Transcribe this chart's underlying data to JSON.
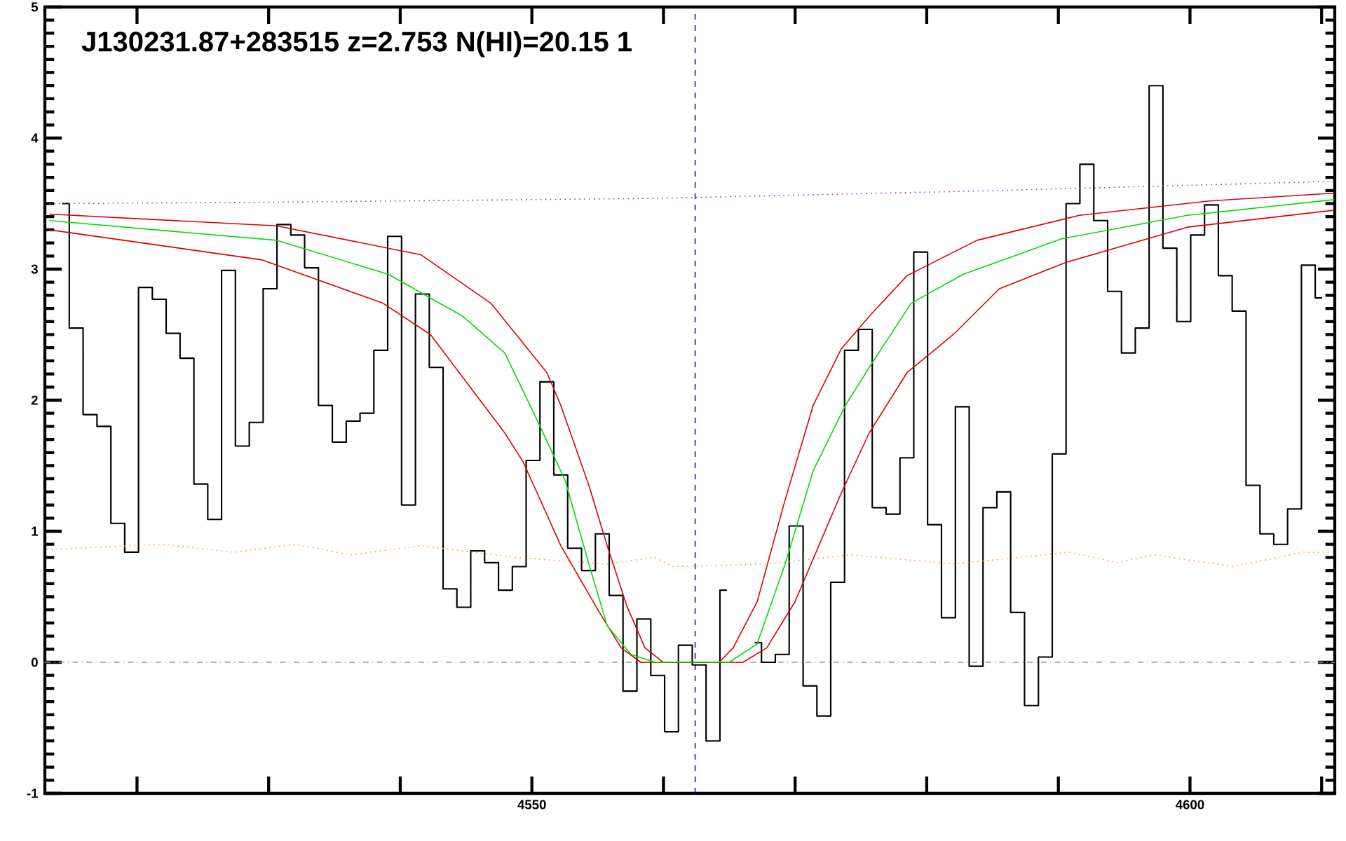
{
  "chart_data": {
    "type": "step",
    "title": "J130231.87+283515 z=2.753 N(HI)=20.15 1",
    "xlim": [
      4513,
      4611
    ],
    "ylim": [
      -1,
      5
    ],
    "xticks": [
      {
        "value": 4520,
        "label": null
      },
      {
        "value": 4530,
        "label": null
      },
      {
        "value": 4540,
        "label": null
      },
      4550,
      {
        "value": 4560,
        "label": null
      },
      {
        "value": 4570,
        "label": null
      },
      {
        "value": 4580,
        "label": null
      },
      {
        "value": 4590,
        "label": null
      },
      4600,
      {
        "value": 4610,
        "label": null
      }
    ],
    "yticks": [
      -1,
      0,
      1,
      2,
      3,
      4,
      5
    ],
    "series": [
      {
        "color": "#000000",
        "x": [
          4514.33,
          4515.38,
          4516.43,
          4517.49,
          4518.54,
          4519.59,
          4520.64,
          4521.69,
          4522.74,
          4523.8,
          4524.85,
          4525.9,
          4526.95,
          4528.0,
          4529.06,
          4530.11,
          4531.16,
          4532.21,
          4533.26,
          4534.31,
          4535.37,
          4536.42,
          4537.47,
          4538.52,
          4539.57,
          4540.63,
          4541.68,
          4542.73,
          4543.78,
          4544.83,
          4545.88,
          4546.94,
          4547.99,
          4549.04,
          4550.09,
          4551.14,
          4552.19,
          4553.25,
          4554.3,
          4555.35,
          4556.4,
          4557.45,
          4558.51,
          4559.56,
          4560.61,
          4561.66,
          4562.71,
          4563.76,
          4564.82,
          4565.87,
          4566.92,
          4567.97,
          4569.02,
          4570.08,
          4571.13,
          4572.18,
          4573.23,
          4574.28,
          4575.33,
          4576.39,
          4577.44,
          4578.49,
          4579.54,
          4580.59,
          4581.65,
          4582.7,
          4583.75,
          4584.8,
          4585.85,
          4586.9,
          4587.96,
          4589.01,
          4590.06,
          4591.11,
          4592.16,
          4593.22,
          4594.27,
          4595.32,
          4596.37,
          4597.42,
          4598.47,
          4599.53,
          4600.58,
          4601.63,
          4602.68,
          4603.73,
          4604.79,
          4605.84,
          4606.89,
          4607.94,
          4608.99,
          4610.04
        ],
        "values": [
          3.5,
          2.55,
          1.89,
          1.8,
          1.06,
          0.84,
          2.86,
          2.77,
          2.51,
          2.32,
          1.36,
          1.09,
          2.99,
          1.65,
          1.83,
          2.85,
          3.34,
          3.26,
          3.01,
          1.96,
          1.68,
          1.84,
          1.9,
          2.38,
          3.25,
          1.2,
          2.81,
          2.25,
          0.56,
          0.42,
          0.85,
          0.76,
          0.55,
          0.73,
          1.54,
          2.14,
          1.43,
          0.87,
          0.7,
          0.98,
          0.51,
          -0.22,
          0.33,
          -0.1,
          -0.53,
          0.13,
          -0.02,
          -0.6,
          0.55,
          null,
          0.15,
          0.0,
          0.06,
          1.04,
          -0.18,
          -0.41,
          0.61,
          2.38,
          2.54,
          1.18,
          1.13,
          1.56,
          3.13,
          1.05,
          0.34,
          1.95,
          -0.03,
          1.18,
          1.3,
          0.38,
          -0.33,
          0.04,
          1.59,
          3.5,
          3.8,
          3.37,
          2.83,
          2.36,
          2.55,
          4.4,
          3.16,
          2.6,
          3.26,
          3.49,
          2.95,
          2.68,
          1.35,
          0.98,
          0.9,
          1.17,
          3.03,
          2.78
        ]
      },
      {
        "type": "line",
        "color": "#9933cc",
        "line_style": "dotted",
        "x": [
          4513.35,
          4530.0,
          4559.34,
          4585.5,
          4610.97
        ],
        "values": [
          3.5,
          3.51,
          3.54,
          3.6,
          3.67
        ]
      },
      {
        "type": "line",
        "color": "#ff9933",
        "line_style": "dotted",
        "x": [
          4513.14,
          4522.08,
          4527.4,
          4531.98,
          4536.24,
          4541.56,
          4548.69,
          4555.72,
          4559.34,
          4560.72,
          4567.85,
          4574.24,
          4582.01,
          4590.85,
          4594.47,
          4597.24,
          4603.3,
          4608.63,
          4610.76
        ],
        "values": [
          0.86,
          0.9,
          0.84,
          0.9,
          0.82,
          0.89,
          0.8,
          0.75,
          0.8,
          0.73,
          0.75,
          0.82,
          0.75,
          0.84,
          0.76,
          0.82,
          0.73,
          0.84,
          0.84
        ]
      },
      {
        "type": "line",
        "color": "#dd0000",
        "x": [
          4513.35,
          4530.59,
          4541.56,
          4546.88,
          4551.14,
          4552.2,
          4554.33,
          4555.72,
          4557.21,
          4558.59,
          4559.97,
          4564.23,
          4565.29,
          4567.11,
          4569.24,
          4571.37,
          4573.5,
          4575.63,
          4578.5,
          4583.82,
          4591.59,
          4601.49,
          4610.97
        ],
        "values": [
          3.42,
          3.33,
          3.11,
          2.74,
          2.21,
          1.96,
          1.35,
          0.89,
          0.43,
          0.11,
          0.0,
          0.0,
          0.11,
          0.46,
          1.24,
          1.96,
          2.39,
          2.64,
          2.95,
          3.22,
          3.41,
          3.52,
          3.58
        ]
      },
      {
        "type": "line",
        "color": "#dd0000",
        "x": [
          4513.35,
          4529.52,
          4538.68,
          4542.3,
          4547.94,
          4549.33,
          4552.2,
          4555.08,
          4556.78,
          4558.27,
          4566.04,
          4567.85,
          4569.98,
          4573.5,
          4575.63,
          4578.5,
          4582.01,
          4585.52,
          4590.53,
          4599.8,
          4610.97
        ],
        "values": [
          3.3,
          3.07,
          2.74,
          2.5,
          1.75,
          1.53,
          0.89,
          0.39,
          0.11,
          0.0,
          0.0,
          0.11,
          0.46,
          1.29,
          1.75,
          2.21,
          2.5,
          2.85,
          3.05,
          3.32,
          3.45
        ]
      },
      {
        "type": "line",
        "color": "#00dd00",
        "x": [
          4513.35,
          4530.59,
          4539.11,
          4544.75,
          4547.94,
          4550.39,
          4552.52,
          4554.33,
          4555.72,
          4557.53,
          4559.34,
          4564.98,
          4567.11,
          4569.24,
          4571.37,
          4573.82,
          4575.63,
          4578.82,
          4582.76,
          4590.21,
          4599.8,
          4610.97
        ],
        "values": [
          3.37,
          3.22,
          2.96,
          2.64,
          2.36,
          1.85,
          1.39,
          0.75,
          0.28,
          0.06,
          0.0,
          0.0,
          0.14,
          0.75,
          1.46,
          1.96,
          2.25,
          2.74,
          2.96,
          3.23,
          3.41,
          3.53
        ]
      }
    ],
    "ref_lines": [
      {
        "axis": "x",
        "value": 4562.4,
        "color": "#0000cc",
        "line_style": "dashed"
      },
      {
        "axis": "y",
        "value": 0,
        "color": "#999999",
        "line_style": "dashdot"
      }
    ]
  }
}
